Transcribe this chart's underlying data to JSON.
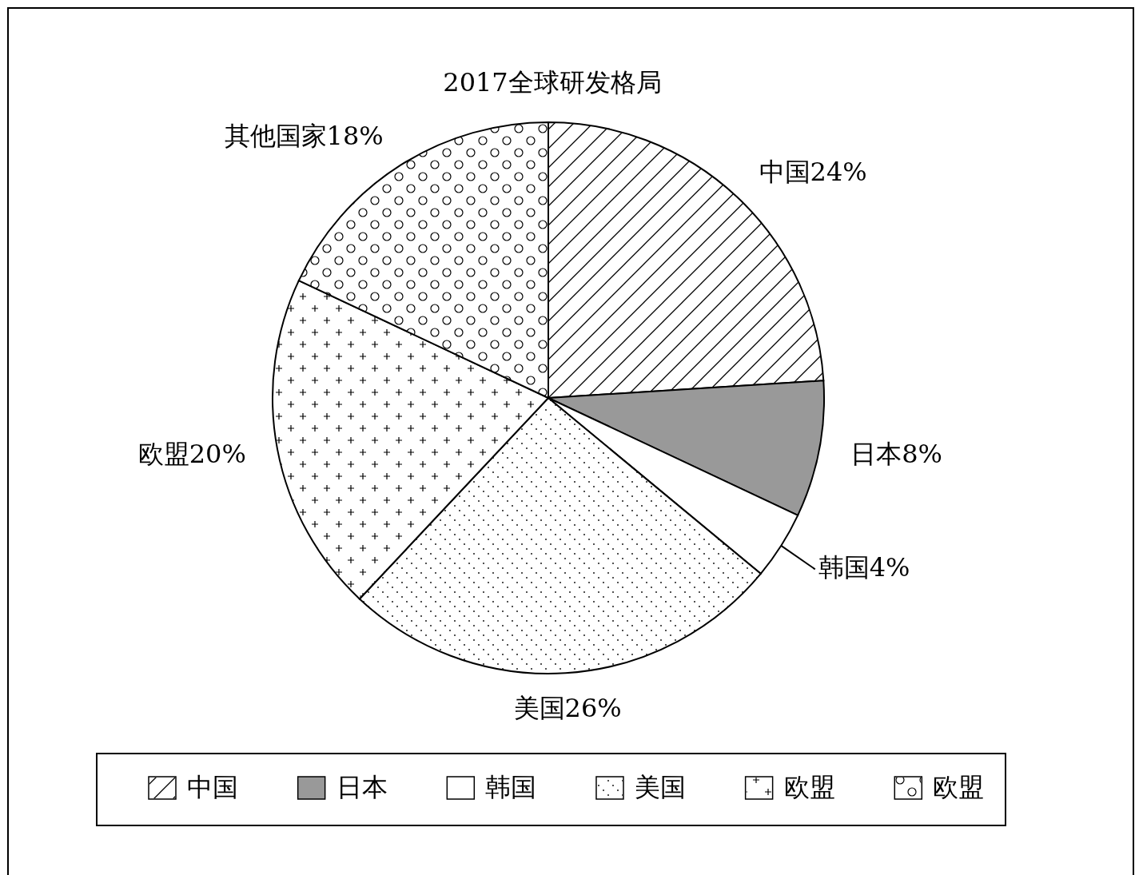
{
  "chart_data": {
    "type": "pie",
    "title": "2017全球研发格局",
    "categories": [
      "中国",
      "日本",
      "韩国",
      "美国",
      "欧盟",
      "欧盟"
    ],
    "values": [
      24,
      8,
      4,
      26,
      20,
      18
    ],
    "value_labels": [
      "中国24%",
      "日本8%",
      "韩国4%",
      "美国26%",
      "欧盟20%",
      "其他国家18%"
    ],
    "colors": [
      "#ffffff",
      "#999999",
      "#ffffff",
      "#ffffff",
      "#ffffff",
      "#ffffff"
    ],
    "legend": "bottom"
  }
}
